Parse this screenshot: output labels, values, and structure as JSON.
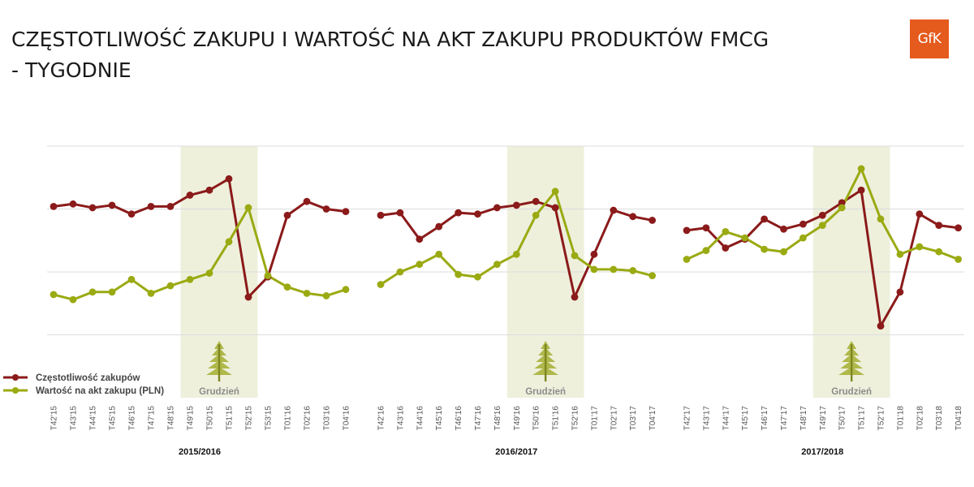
{
  "title": {
    "line1": "CZĘSTOTLIWOŚĆ ZAKUPU I WARTOŚĆ NA AKT ZAKUPU PRODUKTÓW FMCG",
    "line2": "- TYGODNIE"
  },
  "logo": {
    "text": "GfK",
    "color": "#e55a1d"
  },
  "colors": {
    "frequency": "#8b1a1a",
    "value": "#9aaa12",
    "band": "#eef0dc",
    "grid": "#dddddd",
    "tree": "#a7b13a"
  },
  "legend": {
    "position": "left",
    "items": [
      {
        "label": "Częstotliwość zakupów",
        "color": "#8b1a1a"
      },
      {
        "label": "Wartość na akt zakupu (PLN)",
        "color": "#9aaa12"
      }
    ]
  },
  "chart_data": {
    "type": "line",
    "grid": true,
    "y_scale": "unlabeled",
    "ylim": [
      0,
      100
    ],
    "panels": [
      {
        "season": "2015/2016",
        "band_label": "Grudzień",
        "band_weeks": [
          "T49'15",
          "T52'15"
        ],
        "weeks": [
          "T42'15",
          "T43'15",
          "T44'15",
          "T45'15",
          "T46'15",
          "T47'15",
          "T48'15",
          "T49'15",
          "T50'15",
          "T51'15",
          "T52'15",
          "T53'15",
          "T01'16",
          "T02'16",
          "T03'16",
          "T04'16"
        ],
        "series": [
          {
            "key": "frequency",
            "values": [
              76,
              77,
              75.5,
              76.5,
              73,
              76,
              76,
              80.5,
              82.5,
              87,
              40,
              48,
              72.5,
              78,
              75,
              74
            ]
          },
          {
            "key": "value",
            "values": [
              41,
              39,
              42,
              42,
              47,
              41.5,
              44.5,
              47,
              49.5,
              62,
              75.5,
              48.5,
              44,
              41.5,
              40.5,
              43
            ]
          }
        ]
      },
      {
        "season": "2016/2017",
        "band_label": "Grudzień",
        "band_weeks": [
          "T49'16",
          "T52'16"
        ],
        "weeks": [
          "T42'16",
          "T43'16",
          "T44'16",
          "T45'16",
          "T46'16",
          "T47'16",
          "T48'16",
          "T49'16",
          "T50'16",
          "T51'16",
          "T52'16",
          "T01'17",
          "T02'17",
          "T03'17",
          "T04'17"
        ],
        "series": [
          {
            "key": "frequency",
            "values": [
              72.5,
              73.5,
              63,
              68,
              73.5,
              73,
              75.5,
              76.5,
              78,
              75.5,
              40,
              57,
              74.5,
              72,
              70.5
            ]
          },
          {
            "key": "value",
            "values": [
              45,
              50,
              53,
              57,
              49,
              48,
              53,
              57,
              72.5,
              82,
              56.5,
              51,
              51,
              50.5,
              48.5
            ]
          }
        ]
      },
      {
        "season": "2017/2018",
        "band_label": "Grudzień",
        "band_weeks": [
          "T49'17",
          "T52'17"
        ],
        "weeks": [
          "T42'17",
          "T43'17",
          "T44'17",
          "T45'17",
          "T46'17",
          "T47'17",
          "T48'17",
          "T49'17",
          "T50'17",
          "T51'17",
          "T52'17",
          "T01'18",
          "T02'18",
          "T03'18",
          "T04'18"
        ],
        "series": [
          {
            "key": "frequency",
            "values": [
              66.5,
              67.5,
              59.5,
              63,
              71,
              67,
              69,
              72.5,
              77.5,
              82.5,
              28.5,
              42,
              73,
              68.5,
              67.5
            ]
          },
          {
            "key": "value",
            "values": [
              55,
              58.5,
              66,
              63.5,
              59,
              58,
              63.5,
              68.5,
              75.5,
              91,
              71,
              57,
              60,
              58,
              55
            ]
          }
        ]
      }
    ]
  }
}
